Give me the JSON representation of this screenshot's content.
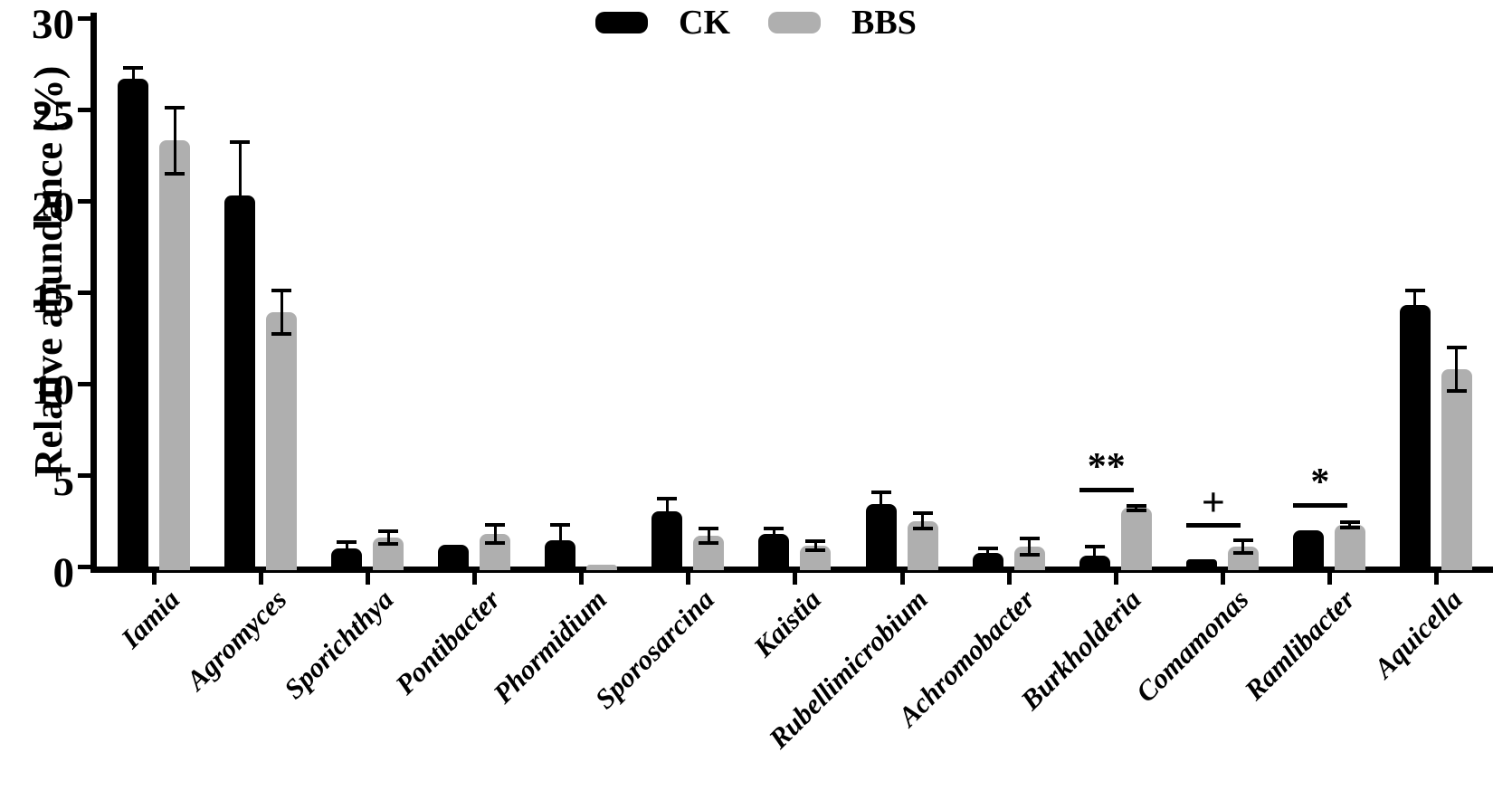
{
  "chart_data": {
    "type": "bar",
    "title": "",
    "xlabel": "",
    "ylabel": "Relative abundance (%)",
    "ylim": [
      0,
      30
    ],
    "yticks": [
      0,
      5,
      10,
      15,
      20,
      25,
      30
    ],
    "ytick_labels": [
      "0",
      "5",
      "10",
      "15",
      "20",
      "25",
      "30"
    ],
    "grid": false,
    "legend_position": "top-center",
    "categories": [
      "Iamia",
      "Agromyces",
      "Sporichthya",
      "Pontibacter",
      "Phormidium",
      "Sporosarcina",
      "Kaistia",
      "Rubellimicrobium",
      "Achromobacter",
      "Burkholderia",
      "Comamonas",
      "Ramlibacter",
      "Aquicella"
    ],
    "series": [
      {
        "name": "CK",
        "color": "#000000",
        "values": [
          26.7,
          20.3,
          1.0,
          1.2,
          1.45,
          3.0,
          1.8,
          3.4,
          0.75,
          0.6,
          0.4,
          2.0,
          14.3
        ],
        "errors": [
          0.6,
          2.9,
          0.35,
          0,
          0.85,
          0.7,
          0.3,
          0.65,
          0.25,
          0.5,
          0,
          0,
          0.8
        ]
      },
      {
        "name": "BBS",
        "color": "#AFAFAF",
        "values": [
          23.3,
          13.9,
          1.6,
          1.8,
          0.1,
          1.7,
          1.15,
          2.5,
          1.1,
          3.2,
          1.1,
          2.3,
          10.8
        ],
        "errors": [
          1.8,
          1.2,
          0.35,
          0.5,
          0,
          0.4,
          0.25,
          0.4,
          0.45,
          0.12,
          0.35,
          0.15,
          1.2
        ]
      }
    ],
    "annotations": [
      {
        "category": "Burkholderia",
        "symbol": "**",
        "line_value": 4.3
      },
      {
        "category": "Comamonas",
        "symbol": "+",
        "line_value": 2.4
      },
      {
        "category": "Ramlibacter",
        "symbol": "*",
        "line_value": 3.45
      }
    ]
  }
}
